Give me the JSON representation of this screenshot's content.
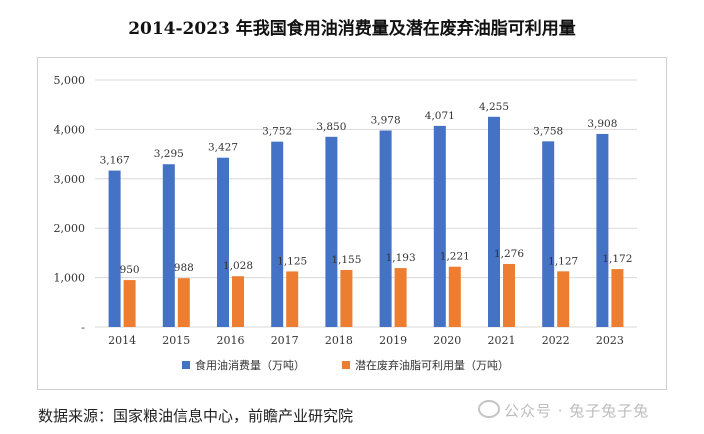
{
  "title": "2014-2023 年我国食用油消费量及潜在废弃油脂可利用量",
  "source": "数据来源：国家粮油信息中心，前瞻产业研究院",
  "watermark": "公众号 · 兔子兔子兔",
  "colors": {
    "series1": "#4472c4",
    "series2": "#ed7d31",
    "grid": "#d9d9d9",
    "axis": "#444444"
  },
  "chart_data": {
    "type": "bar",
    "categories": [
      "2014",
      "2015",
      "2016",
      "2017",
      "2018",
      "2019",
      "2020",
      "2021",
      "2022",
      "2023"
    ],
    "series": [
      {
        "name": "食用油消费量（万吨）",
        "values": [
          3167,
          3295,
          3427,
          3752,
          3850,
          3978,
          4071,
          4255,
          3758,
          3908
        ]
      },
      {
        "name": "潜在废弃油脂可利用量（万吨）",
        "values": [
          950,
          988,
          1028,
          1125,
          1155,
          1193,
          1221,
          1276,
          1127,
          1172
        ]
      }
    ],
    "value_labels": [
      [
        "3,167",
        "3,295",
        "3,427",
        "3,752",
        "3,850",
        "3,978",
        "4,071",
        "4,255",
        "3,758",
        "3,908"
      ],
      [
        "950",
        "988",
        "1,028",
        "1,125",
        "1,155",
        "1,193",
        "1,221",
        "1,276",
        "1,127",
        "1,172"
      ]
    ],
    "y_ticks": [
      "-",
      "1,000",
      "2,000",
      "3,000",
      "4,000",
      "5,000"
    ],
    "ylim": [
      0,
      5000
    ],
    "grid": true,
    "legend_position": "bottom"
  }
}
